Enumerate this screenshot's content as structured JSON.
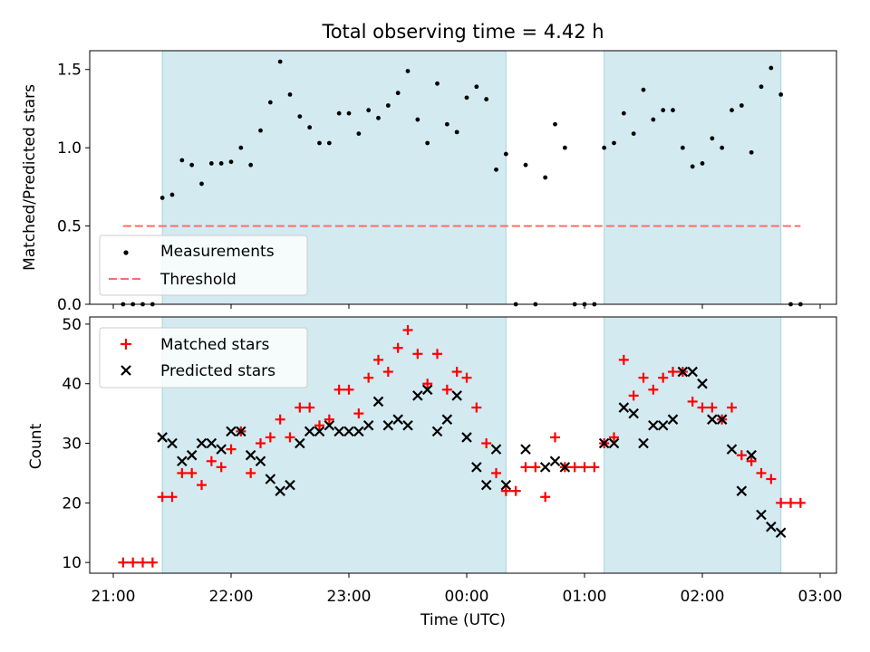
{
  "title": "Total observing time = 4.42 h",
  "xlabel": "Time (UTC)",
  "x_ticks": [
    "21:00",
    "22:00",
    "23:00",
    "00:00",
    "01:00",
    "02:00",
    "03:00"
  ],
  "chart_data": [
    {
      "type": "scatter",
      "ylabel": "Matched/Predicted stars",
      "ylim": [
        0,
        1.62
      ],
      "y_ticks": [
        "0.0",
        "0.5",
        "1.0",
        "1.5"
      ],
      "grid": false,
      "legend_position": "lower-left",
      "shaded_intervals": [
        [
          "21:25",
          "00:20"
        ],
        [
          "01:10",
          "02:40"
        ]
      ],
      "threshold": {
        "name": "Threshold",
        "y": 0.5,
        "x_from": "21:05",
        "x_to": "02:50",
        "color": "#ff6b6b"
      },
      "series": [
        {
          "name": "Measurements",
          "marker": "dot",
          "color": "#000000",
          "points": [
            [
              "21:05",
              0
            ],
            [
              "21:10",
              0
            ],
            [
              "21:15",
              0
            ],
            [
              "21:20",
              0
            ],
            [
              "21:25",
              0.68
            ],
            [
              "21:30",
              0.7
            ],
            [
              "21:35",
              0.92
            ],
            [
              "21:40",
              0.89
            ],
            [
              "21:45",
              0.77
            ],
            [
              "21:50",
              0.9
            ],
            [
              "21:55",
              0.9
            ],
            [
              "22:00",
              0.91
            ],
            [
              "22:05",
              1.0
            ],
            [
              "22:10",
              0.89
            ],
            [
              "22:15",
              1.11
            ],
            [
              "22:20",
              1.29
            ],
            [
              "22:25",
              1.55
            ],
            [
              "22:30",
              1.34
            ],
            [
              "22:35",
              1.2
            ],
            [
              "22:40",
              1.13
            ],
            [
              "22:45",
              1.03
            ],
            [
              "22:50",
              1.03
            ],
            [
              "22:55",
              1.22
            ],
            [
              "23:00",
              1.22
            ],
            [
              "23:05",
              1.09
            ],
            [
              "23:10",
              1.24
            ],
            [
              "23:15",
              1.19
            ],
            [
              "23:20",
              1.27
            ],
            [
              "23:25",
              1.35
            ],
            [
              "23:30",
              1.49
            ],
            [
              "23:35",
              1.18
            ],
            [
              "23:40",
              1.03
            ],
            [
              "23:45",
              1.41
            ],
            [
              "23:50",
              1.15
            ],
            [
              "23:55",
              1.1
            ],
            [
              "00:00",
              1.32
            ],
            [
              "00:05",
              1.39
            ],
            [
              "00:10",
              1.31
            ],
            [
              "00:15",
              0.86
            ],
            [
              "00:20",
              0.96
            ],
            [
              "00:25",
              0
            ],
            [
              "00:30",
              0.89
            ],
            [
              "00:35",
              0
            ],
            [
              "00:40",
              0.81
            ],
            [
              "00:45",
              1.15
            ],
            [
              "00:50",
              1.0
            ],
            [
              "00:55",
              0
            ],
            [
              "01:00",
              0
            ],
            [
              "01:05",
              0
            ],
            [
              "01:10",
              1.0
            ],
            [
              "01:15",
              1.03
            ],
            [
              "01:20",
              1.22
            ],
            [
              "01:25",
              1.09
            ],
            [
              "01:30",
              1.37
            ],
            [
              "01:35",
              1.18
            ],
            [
              "01:40",
              1.24
            ],
            [
              "01:45",
              1.24
            ],
            [
              "01:50",
              1.0
            ],
            [
              "01:55",
              0.88
            ],
            [
              "02:00",
              0.9
            ],
            [
              "02:05",
              1.06
            ],
            [
              "02:10",
              1.0
            ],
            [
              "02:15",
              1.24
            ],
            [
              "02:20",
              1.27
            ],
            [
              "02:25",
              0.97
            ],
            [
              "02:30",
              1.39
            ],
            [
              "02:35",
              1.51
            ],
            [
              "02:40",
              1.34
            ],
            [
              "02:45",
              0
            ],
            [
              "02:50",
              0
            ]
          ]
        }
      ]
    },
    {
      "type": "scatter",
      "ylabel": "Count",
      "ylim": [
        8.2,
        51.2
      ],
      "y_ticks": [
        "10",
        "20",
        "30",
        "40",
        "50"
      ],
      "grid": false,
      "legend_position": "upper-left",
      "shaded_intervals": [
        [
          "21:25",
          "00:20"
        ],
        [
          "01:10",
          "02:40"
        ]
      ],
      "series": [
        {
          "name": "Matched stars",
          "marker": "plus",
          "color": "#ff0000",
          "points": [
            [
              "21:05",
              10
            ],
            [
              "21:10",
              10
            ],
            [
              "21:15",
              10
            ],
            [
              "21:20",
              10
            ],
            [
              "21:25",
              21
            ],
            [
              "21:30",
              21
            ],
            [
              "21:35",
              25
            ],
            [
              "21:40",
              25
            ],
            [
              "21:45",
              23
            ],
            [
              "21:50",
              27
            ],
            [
              "21:55",
              26
            ],
            [
              "22:00",
              29
            ],
            [
              "22:05",
              32
            ],
            [
              "22:10",
              25
            ],
            [
              "22:15",
              30
            ],
            [
              "22:20",
              31
            ],
            [
              "22:25",
              34
            ],
            [
              "22:30",
              31
            ],
            [
              "22:35",
              36
            ],
            [
              "22:40",
              36
            ],
            [
              "22:45",
              33
            ],
            [
              "22:50",
              34
            ],
            [
              "22:55",
              39
            ],
            [
              "23:00",
              39
            ],
            [
              "23:05",
              35
            ],
            [
              "23:10",
              41
            ],
            [
              "23:15",
              44
            ],
            [
              "23:20",
              42
            ],
            [
              "23:25",
              46
            ],
            [
              "23:30",
              49
            ],
            [
              "23:35",
              45
            ],
            [
              "23:40",
              40
            ],
            [
              "23:45",
              45
            ],
            [
              "23:50",
              39
            ],
            [
              "23:55",
              42
            ],
            [
              "00:00",
              41
            ],
            [
              "00:05",
              36
            ],
            [
              "00:10",
              30
            ],
            [
              "00:15",
              25
            ],
            [
              "00:20",
              22
            ],
            [
              "00:25",
              22
            ],
            [
              "00:30",
              26
            ],
            [
              "00:35",
              26
            ],
            [
              "00:40",
              21
            ],
            [
              "00:45",
              31
            ],
            [
              "00:50",
              26
            ],
            [
              "00:55",
              26
            ],
            [
              "01:00",
              26
            ],
            [
              "01:05",
              26
            ],
            [
              "01:10",
              30
            ],
            [
              "01:15",
              31
            ],
            [
              "01:20",
              44
            ],
            [
              "01:25",
              38
            ],
            [
              "01:30",
              41
            ],
            [
              "01:35",
              39
            ],
            [
              "01:40",
              41
            ],
            [
              "01:45",
              42
            ],
            [
              "01:50",
              42
            ],
            [
              "01:55",
              37
            ],
            [
              "02:00",
              36
            ],
            [
              "02:05",
              36
            ],
            [
              "02:10",
              34
            ],
            [
              "02:15",
              36
            ],
            [
              "02:20",
              28
            ],
            [
              "02:25",
              27
            ],
            [
              "02:30",
              25
            ],
            [
              "02:35",
              24
            ],
            [
              "02:40",
              20
            ],
            [
              "02:45",
              20
            ],
            [
              "02:50",
              20
            ]
          ]
        },
        {
          "name": "Predicted stars",
          "marker": "x",
          "color": "#000000",
          "points": [
            [
              "21:25",
              31
            ],
            [
              "21:30",
              30
            ],
            [
              "21:35",
              27
            ],
            [
              "21:40",
              28
            ],
            [
              "21:45",
              30
            ],
            [
              "21:50",
              30
            ],
            [
              "21:55",
              29
            ],
            [
              "22:00",
              32
            ],
            [
              "22:05",
              32
            ],
            [
              "22:10",
              28
            ],
            [
              "22:15",
              27
            ],
            [
              "22:20",
              24
            ],
            [
              "22:25",
              22
            ],
            [
              "22:30",
              23
            ],
            [
              "22:35",
              30
            ],
            [
              "22:40",
              32
            ],
            [
              "22:45",
              32
            ],
            [
              "22:50",
              33
            ],
            [
              "22:55",
              32
            ],
            [
              "23:00",
              32
            ],
            [
              "23:05",
              32
            ],
            [
              "23:10",
              33
            ],
            [
              "23:15",
              37
            ],
            [
              "23:20",
              33
            ],
            [
              "23:25",
              34
            ],
            [
              "23:30",
              33
            ],
            [
              "23:35",
              38
            ],
            [
              "23:40",
              39
            ],
            [
              "23:45",
              32
            ],
            [
              "23:50",
              34
            ],
            [
              "23:55",
              38
            ],
            [
              "00:00",
              31
            ],
            [
              "00:05",
              26
            ],
            [
              "00:10",
              23
            ],
            [
              "00:15",
              29
            ],
            [
              "00:20",
              23
            ],
            [
              "00:30",
              29
            ],
            [
              "00:40",
              26
            ],
            [
              "00:45",
              27
            ],
            [
              "00:50",
              26
            ],
            [
              "01:10",
              30
            ],
            [
              "01:15",
              30
            ],
            [
              "01:20",
              36
            ],
            [
              "01:25",
              35
            ],
            [
              "01:30",
              30
            ],
            [
              "01:35",
              33
            ],
            [
              "01:40",
              33
            ],
            [
              "01:45",
              34
            ],
            [
              "01:50",
              42
            ],
            [
              "01:55",
              42
            ],
            [
              "02:00",
              40
            ],
            [
              "02:05",
              34
            ],
            [
              "02:10",
              34
            ],
            [
              "02:15",
              29
            ],
            [
              "02:20",
              22
            ],
            [
              "02:25",
              28
            ],
            [
              "02:30",
              18
            ],
            [
              "02:35",
              16
            ],
            [
              "02:40",
              15
            ]
          ]
        }
      ]
    }
  ],
  "colors": {
    "shade": "#d3eaf1",
    "shade_edge": "#a9d3df",
    "threshold": "#ff6b6b",
    "matched": "#ff0000",
    "predicted": "#000000"
  }
}
